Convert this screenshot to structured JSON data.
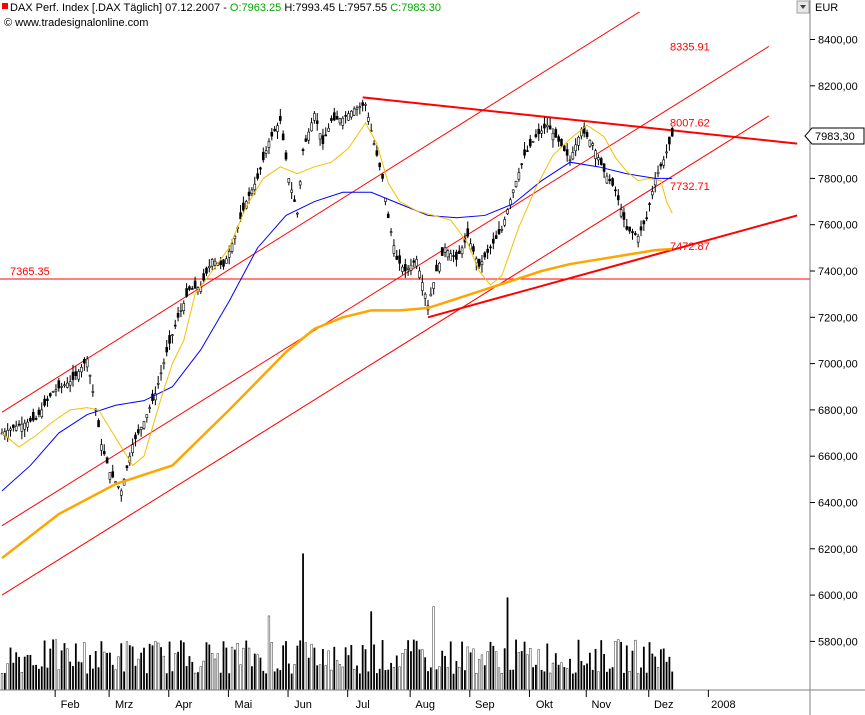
{
  "header": {
    "title": "DAX Perf. Index [.DAX  Täglich] 07.12.2007 - ",
    "open": "O:7963.25",
    "high": "H:7993.45",
    "low": "L:7957.55",
    "close": "C:7983.30",
    "source": "© www.tradesignalonline.com",
    "currency": "EUR",
    "price_tag": "7983,30"
  },
  "colors": {
    "candle": "#000000",
    "trend": "#ff0000",
    "sma_fast": "#f5c000",
    "sma_mid": "#0000ff",
    "sma_slow": "#ffa500",
    "tag_bg": "#ffffff"
  },
  "chart_data": {
    "type": "candlestick",
    "y_ticks": [
      "6200,00",
      "6400,00",
      "6600,00",
      "6800,00",
      "7000,00",
      "7200,00",
      "7400,00",
      "7600,00",
      "7800,00",
      "8000,00",
      "8200,00",
      "8400,00"
    ],
    "y_tick_values": [
      6200,
      6400,
      6600,
      6800,
      7000,
      7200,
      7400,
      7600,
      7800,
      8000,
      8200,
      8400
    ],
    "vol_ticks": [
      "5800,00",
      "6000,00"
    ],
    "vol_tick_values": [
      5800,
      6000
    ],
    "x_labels": [
      "Feb",
      "Mrz",
      "Apr",
      "Mai",
      "Jun",
      "Jul",
      "Aug",
      "Sep",
      "Okt",
      "Nov",
      "Dez",
      "2008"
    ],
    "x_label_day": [
      24,
      43,
      64,
      85,
      106,
      127,
      149,
      170,
      191,
      211,
      233,
      254
    ],
    "levels": [
      {
        "label": "8335.91",
        "value": 8335.91
      },
      {
        "label": "8007.62",
        "value": 8007.62
      },
      {
        "label": "7732.71",
        "value": 7732.71
      },
      {
        "label": "7472.87",
        "value": 7472.87
      },
      {
        "label": "7365.35",
        "value": 7365.35
      }
    ],
    "trend_lines": [
      {
        "name": "",
        "points": [
          [
            0,
            6790
          ],
          [
            270,
            8870
          ]
        ],
        "width": 1
      },
      {
        "name": "",
        "points": [
          [
            0,
            6300
          ],
          [
            270,
            8370
          ]
        ],
        "width": 1
      },
      {
        "name": "",
        "points": [
          [
            0,
            6000
          ],
          [
            270,
            8070
          ]
        ],
        "width": 1
      },
      {
        "name": "",
        "points": [
          [
            127,
            8150
          ],
          [
            280,
            7950
          ]
        ],
        "width": 2
      },
      {
        "name": "",
        "points": [
          [
            150,
            7200
          ],
          [
            280,
            7640
          ]
        ],
        "width": 2
      }
    ],
    "close_path": [
      [
        0,
        6700
      ],
      [
        5,
        6730
      ],
      [
        12,
        6760
      ],
      [
        18,
        6880
      ],
      [
        25,
        6930
      ],
      [
        30,
        7020
      ],
      [
        32,
        6880
      ],
      [
        35,
        6650
      ],
      [
        38,
        6530
      ],
      [
        42,
        6450
      ],
      [
        46,
        6650
      ],
      [
        50,
        6750
      ],
      [
        54,
        6870
      ],
      [
        58,
        7050
      ],
      [
        62,
        7200
      ],
      [
        66,
        7320
      ],
      [
        70,
        7330
      ],
      [
        74,
        7450
      ],
      [
        78,
        7420
      ],
      [
        82,
        7550
      ],
      [
        86,
        7700
      ],
      [
        90,
        7800
      ],
      [
        94,
        7960
      ],
      [
        98,
        8050
      ],
      [
        101,
        7800
      ],
      [
        104,
        7650
      ],
      [
        106,
        7920
      ],
      [
        110,
        8080
      ],
      [
        113,
        7950
      ],
      [
        116,
        8050
      ],
      [
        120,
        8060
      ],
      [
        124,
        8100
      ],
      [
        128,
        8120
      ],
      [
        131,
        7950
      ],
      [
        134,
        7800
      ],
      [
        136,
        7630
      ],
      [
        139,
        7450
      ],
      [
        142,
        7400
      ],
      [
        146,
        7450
      ],
      [
        150,
        7250
      ],
      [
        153,
        7400
      ],
      [
        156,
        7500
      ],
      [
        160,
        7450
      ],
      [
        164,
        7550
      ],
      [
        168,
        7420
      ],
      [
        172,
        7500
      ],
      [
        176,
        7580
      ],
      [
        180,
        7750
      ],
      [
        184,
        7900
      ],
      [
        188,
        7980
      ],
      [
        192,
        8030
      ],
      [
        196,
        7960
      ],
      [
        200,
        7880
      ],
      [
        204,
        8010
      ],
      [
        208,
        7950
      ],
      [
        212,
        7830
      ],
      [
        216,
        7750
      ],
      [
        220,
        7580
      ],
      [
        224,
        7550
      ],
      [
        227,
        7630
      ],
      [
        230,
        7800
      ],
      [
        233,
        7880
      ],
      [
        236,
        7983
      ]
    ],
    "sma_fast": [
      [
        0,
        6700
      ],
      [
        6,
        6640
      ],
      [
        12,
        6690
      ],
      [
        18,
        6750
      ],
      [
        24,
        6800
      ],
      [
        30,
        6810
      ],
      [
        34,
        6800
      ],
      [
        38,
        6720
      ],
      [
        42,
        6640
      ],
      [
        46,
        6560
      ],
      [
        50,
        6600
      ],
      [
        56,
        6850
      ],
      [
        60,
        7000
      ],
      [
        64,
        7100
      ],
      [
        68,
        7300
      ],
      [
        74,
        7400
      ],
      [
        80,
        7500
      ],
      [
        86,
        7680
      ],
      [
        92,
        7800
      ],
      [
        98,
        7850
      ],
      [
        104,
        7820
      ],
      [
        110,
        7850
      ],
      [
        116,
        7870
      ],
      [
        122,
        7930
      ],
      [
        128,
        8040
      ],
      [
        132,
        7950
      ],
      [
        136,
        7780
      ],
      [
        140,
        7700
      ],
      [
        146,
        7660
      ],
      [
        152,
        7640
      ],
      [
        158,
        7620
      ],
      [
        164,
        7520
      ],
      [
        168,
        7400
      ],
      [
        172,
        7340
      ],
      [
        176,
        7380
      ],
      [
        182,
        7590
      ],
      [
        188,
        7760
      ],
      [
        194,
        7900
      ],
      [
        200,
        7970
      ],
      [
        206,
        8030
      ],
      [
        212,
        7980
      ],
      [
        216,
        7890
      ],
      [
        220,
        7830
      ],
      [
        224,
        7790
      ],
      [
        228,
        7800
      ],
      [
        232,
        7790
      ],
      [
        234,
        7700
      ],
      [
        236,
        7650
      ]
    ],
    "sma_mid": [
      [
        0,
        6450
      ],
      [
        10,
        6560
      ],
      [
        20,
        6700
      ],
      [
        30,
        6780
      ],
      [
        40,
        6820
      ],
      [
        50,
        6840
      ],
      [
        60,
        6900
      ],
      [
        70,
        7060
      ],
      [
        80,
        7270
      ],
      [
        90,
        7500
      ],
      [
        100,
        7640
      ],
      [
        110,
        7700
      ],
      [
        120,
        7740
      ],
      [
        130,
        7740
      ],
      [
        140,
        7690
      ],
      [
        150,
        7640
      ],
      [
        160,
        7630
      ],
      [
        170,
        7640
      ],
      [
        180,
        7690
      ],
      [
        190,
        7790
      ],
      [
        200,
        7870
      ],
      [
        210,
        7850
      ],
      [
        220,
        7820
      ],
      [
        230,
        7800
      ],
      [
        236,
        7800
      ]
    ],
    "sma_slow": [
      [
        0,
        6160
      ],
      [
        20,
        6350
      ],
      [
        40,
        6480
      ],
      [
        60,
        6560
      ],
      [
        80,
        6800
      ],
      [
        100,
        7050
      ],
      [
        110,
        7150
      ],
      [
        120,
        7200
      ],
      [
        130,
        7230
      ],
      [
        140,
        7230
      ],
      [
        150,
        7240
      ],
      [
        160,
        7280
      ],
      [
        170,
        7320
      ],
      [
        180,
        7360
      ],
      [
        190,
        7400
      ],
      [
        200,
        7430
      ],
      [
        210,
        7450
      ],
      [
        220,
        7470
      ],
      [
        230,
        7490
      ],
      [
        236,
        7495
      ]
    ],
    "volume_spikes": [
      [
        106,
        6180
      ],
      [
        152,
        5950
      ],
      [
        178,
        5990
      ],
      [
        130,
        5930
      ],
      [
        94,
        5910
      ],
      [
        240,
        5860
      ]
    ]
  }
}
